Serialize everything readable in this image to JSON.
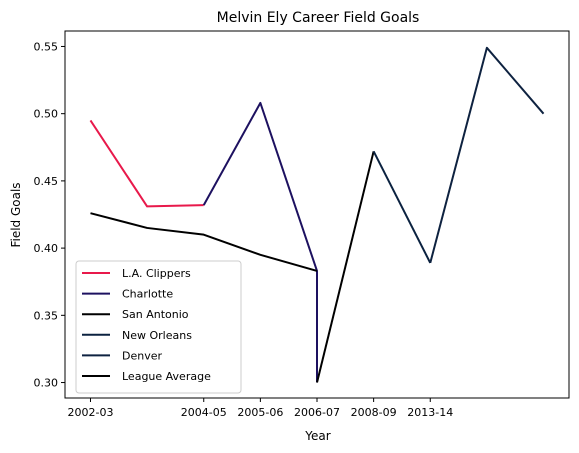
{
  "chart_data": {
    "type": "line",
    "title": "Melvin Ely Career Field Goals",
    "xlabel": "Year",
    "ylabel": "Field Goals",
    "x_tick_labels": [
      "2002-03",
      "2004-05",
      "2005-06",
      "2006-07",
      "2008-09",
      "2013-14"
    ],
    "x_tick_positions": [
      0,
      2,
      3,
      4,
      5,
      6
    ],
    "y_ticks": [
      0.3,
      0.35,
      0.4,
      0.45,
      0.5,
      0.55
    ],
    "y_tick_labels": [
      "0.30",
      "0.35",
      "0.40",
      "0.45",
      "0.50",
      "0.55"
    ],
    "xlim": [
      -0.45,
      8.45
    ],
    "ylim": [
      0.2885,
      0.5615
    ],
    "legend_position": "lower-left",
    "series": [
      {
        "name": "L.A. Clippers",
        "color": "#e8194b",
        "points": [
          [
            0,
            0.495
          ],
          [
            1,
            0.431
          ],
          [
            2,
            0.432
          ]
        ]
      },
      {
        "name": "Charlotte",
        "color": "#1d1160",
        "points": [
          [
            2,
            0.432
          ],
          [
            3,
            0.508
          ],
          [
            4,
            0.383
          ],
          [
            4,
            0.3
          ]
        ]
      },
      {
        "name": "San Antonio",
        "color": "#000000",
        "points": [
          [
            4,
            0.3
          ],
          [
            5,
            0.472
          ]
        ]
      },
      {
        "name": "New Orleans",
        "color": "#0b2240",
        "points": [
          [
            5,
            0.472
          ],
          [
            6,
            0.389
          ]
        ]
      },
      {
        "name": "Denver",
        "color": "#0e2240",
        "points": [
          [
            6,
            0.389
          ],
          [
            7,
            0.549
          ],
          [
            8,
            0.5
          ]
        ]
      },
      {
        "name": "League Average",
        "color": "#000000",
        "points": [
          [
            0,
            0.426
          ],
          [
            1,
            0.415
          ],
          [
            2,
            0.41
          ],
          [
            3,
            0.395
          ],
          [
            4,
            0.383
          ]
        ]
      }
    ]
  }
}
